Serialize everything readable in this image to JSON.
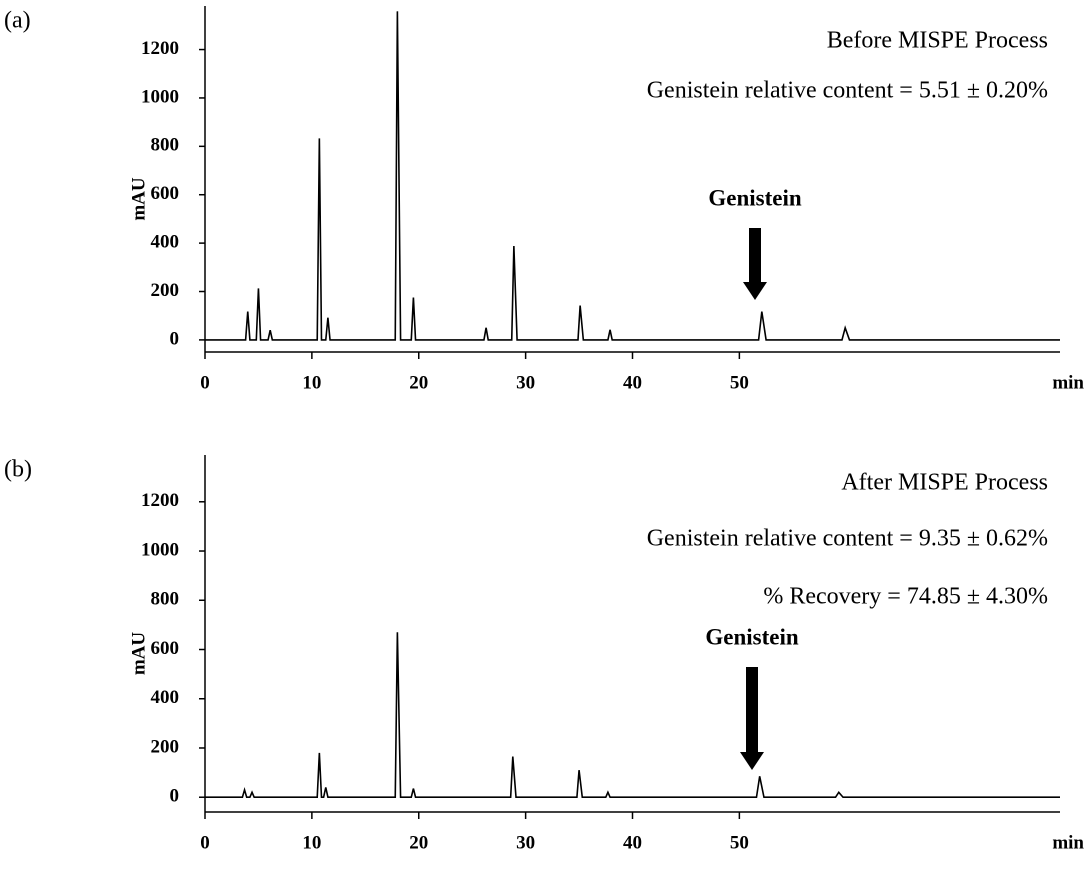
{
  "chart_data": [
    {
      "type": "line",
      "panel_label": "(a)",
      "annotations": [
        "Before MISPE Process",
        "Genistein relative content = 5.51 ± 0.20%"
      ],
      "peak_label": "Genistein",
      "xlabel": "min",
      "ylabel": "mAU",
      "x": [
        0,
        3.8,
        4.0,
        4.2,
        4.8,
        5.0,
        5.2,
        5.9,
        6.1,
        6.3,
        10.5,
        10.7,
        10.9,
        11.3,
        11.5,
        11.7,
        17.8,
        18.0,
        18.3,
        19.3,
        19.5,
        19.7,
        26.1,
        26.3,
        26.5,
        28.7,
        28.9,
        29.2,
        34.9,
        35.1,
        35.4,
        37.7,
        37.9,
        38.1,
        51.8,
        52.1,
        52.5,
        59.6,
        59.9,
        60.3,
        80
      ],
      "series": [
        {
          "color": "#000000",
          "values": [
            0,
            0,
            117,
            0,
            0,
            213,
            0,
            0,
            40,
            0,
            0,
            833,
            0,
            0,
            92,
            0,
            0,
            1358,
            0,
            0,
            175,
            0,
            0,
            50,
            0,
            0,
            388,
            0,
            0,
            142,
            0,
            0,
            42,
            0,
            0,
            117,
            0,
            0,
            50,
            0,
            0
          ]
        }
      ],
      "xlim": [
        0,
        80
      ],
      "xticks": [
        0,
        10,
        20,
        30,
        40,
        50
      ],
      "ylim": [
        -50,
        1380
      ],
      "yticks": [
        0,
        200,
        400,
        600,
        800,
        1000,
        1200
      ]
    },
    {
      "type": "line",
      "panel_label": "(b)",
      "annotations": [
        "After MISPE Process",
        "Genistein relative content = 9.35 ± 0.62%",
        "% Recovery = 74.85 ± 4.30%"
      ],
      "peak_label": "Genistein",
      "xlabel": "min",
      "ylabel": "mAU",
      "x": [
        0,
        3.5,
        3.7,
        3.9,
        4.2,
        4.4,
        4.6,
        10.5,
        10.7,
        10.9,
        11.1,
        11.3,
        11.5,
        17.8,
        18.0,
        18.3,
        19.3,
        19.5,
        19.7,
        28.6,
        28.8,
        29.1,
        34.8,
        35.0,
        35.3,
        37.5,
        37.7,
        37.9,
        51.6,
        51.9,
        52.3,
        59.0,
        59.3,
        59.7,
        80
      ],
      "series": [
        {
          "color": "#000000",
          "values": [
            0,
            0,
            30,
            0,
            0,
            20,
            0,
            0,
            180,
            0,
            0,
            40,
            0,
            0,
            670,
            0,
            0,
            35,
            0,
            0,
            165,
            0,
            0,
            110,
            0,
            0,
            20,
            0,
            0,
            85,
            0,
            0,
            20,
            0,
            0
          ]
        }
      ],
      "xlim": [
        0,
        80
      ],
      "xticks": [
        0,
        10,
        20,
        30,
        40,
        50
      ],
      "ylim": [
        -60,
        1390
      ],
      "yticks": [
        0,
        200,
        400,
        600,
        800,
        1000,
        1200
      ]
    }
  ]
}
